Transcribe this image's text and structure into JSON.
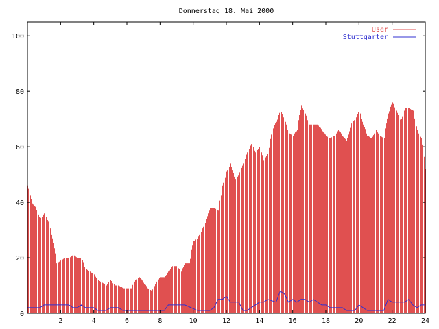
{
  "chart_data": {
    "type": "bar",
    "title": "Donnerstag 18. Mai 2000",
    "xlabel": "",
    "ylabel": "",
    "xlim": [
      0,
      24
    ],
    "ylim": [
      0,
      105
    ],
    "x_ticks": [
      2,
      4,
      6,
      8,
      10,
      12,
      14,
      16,
      18,
      20,
      22,
      24
    ],
    "y_ticks": [
      0,
      20,
      40,
      60,
      80,
      100
    ],
    "grid": false,
    "legend_position": "top-right",
    "colors": {
      "User": "#e05050",
      "Stuttgarter": "#3030d0"
    },
    "legend": [
      {
        "name": "User",
        "color": "#e05050",
        "style": "impulse"
      },
      {
        "name": "Stuttgarter",
        "color": "#3030d0",
        "style": "line"
      }
    ],
    "series": [
      {
        "name": "User",
        "style": "impulse",
        "x": [
          0.0,
          0.25,
          0.5,
          0.75,
          1.0,
          1.25,
          1.5,
          1.75,
          2.0,
          2.25,
          2.5,
          2.75,
          3.0,
          3.25,
          3.5,
          3.75,
          4.0,
          4.25,
          4.5,
          4.75,
          5.0,
          5.25,
          5.5,
          5.75,
          6.0,
          6.25,
          6.5,
          6.75,
          7.0,
          7.25,
          7.5,
          7.75,
          8.0,
          8.25,
          8.5,
          8.75,
          9.0,
          9.25,
          9.5,
          9.75,
          10.0,
          10.25,
          10.5,
          10.75,
          11.0,
          11.25,
          11.5,
          11.75,
          12.0,
          12.25,
          12.5,
          12.75,
          13.0,
          13.25,
          13.5,
          13.75,
          14.0,
          14.25,
          14.5,
          14.75,
          15.0,
          15.25,
          15.5,
          15.75,
          16.0,
          16.25,
          16.5,
          16.75,
          17.0,
          17.25,
          17.5,
          17.75,
          18.0,
          18.25,
          18.5,
          18.75,
          19.0,
          19.25,
          19.5,
          19.75,
          20.0,
          20.25,
          20.5,
          20.75,
          21.0,
          21.25,
          21.5,
          21.75,
          22.0,
          22.25,
          22.5,
          22.75,
          23.0,
          23.25,
          23.5,
          23.75,
          24.0
        ],
        "values": [
          46,
          40,
          38,
          34,
          36,
          33,
          27,
          18,
          19,
          20,
          20,
          21,
          20,
          20,
          16,
          15,
          14,
          12,
          11,
          10,
          12,
          10,
          10,
          9,
          9,
          9,
          12,
          13,
          11,
          9,
          8,
          11,
          13,
          13,
          15,
          17,
          17,
          15,
          18,
          18,
          26,
          27,
          30,
          33,
          38,
          38,
          37,
          46,
          51,
          54,
          48,
          50,
          54,
          58,
          61,
          58,
          60,
          55,
          58,
          66,
          69,
          73,
          70,
          65,
          64,
          66,
          75,
          72,
          68,
          68,
          68,
          66,
          64,
          63,
          64,
          66,
          64,
          62,
          68,
          70,
          73,
          68,
          64,
          63,
          66,
          64,
          63,
          72,
          76,
          73,
          69,
          74,
          74,
          73,
          66,
          63,
          52
        ]
      },
      {
        "name": "Stuttgarter",
        "style": "line",
        "x": [
          0.0,
          0.5,
          0.75,
          1.0,
          2.5,
          2.75,
          3.0,
          3.25,
          3.5,
          4.0,
          4.25,
          4.5,
          4.75,
          5.0,
          5.5,
          5.75,
          8.25,
          8.5,
          9.5,
          10.25,
          11.0,
          11.25,
          11.5,
          11.75,
          12.0,
          12.25,
          12.75,
          13.0,
          13.25,
          13.5,
          14.0,
          14.25,
          14.5,
          15.0,
          15.25,
          15.5,
          15.75,
          16.0,
          16.25,
          16.5,
          16.75,
          17.0,
          17.25,
          17.5,
          17.75,
          18.0,
          18.25,
          19.0,
          19.25,
          19.75,
          20.0,
          20.25,
          20.5,
          21.0,
          21.25,
          21.5,
          21.75,
          22.0,
          22.25,
          22.75,
          23.0,
          23.25,
          23.5,
          23.75,
          24.0
        ],
        "values": [
          2,
          2,
          2,
          3,
          3,
          2,
          2,
          3,
          2,
          2,
          1,
          1,
          1,
          2,
          2,
          1,
          1,
          3,
          3,
          1,
          1,
          2,
          5,
          5,
          6,
          4,
          4,
          1,
          1,
          2,
          4,
          4,
          5,
          4,
          8,
          7,
          4,
          5,
          4,
          5,
          5,
          4,
          5,
          4,
          3,
          3,
          2,
          2,
          1,
          1,
          3,
          2,
          1,
          1,
          1,
          1,
          5,
          4,
          4,
          4,
          5,
          3,
          2,
          3,
          3
        ]
      }
    ]
  }
}
